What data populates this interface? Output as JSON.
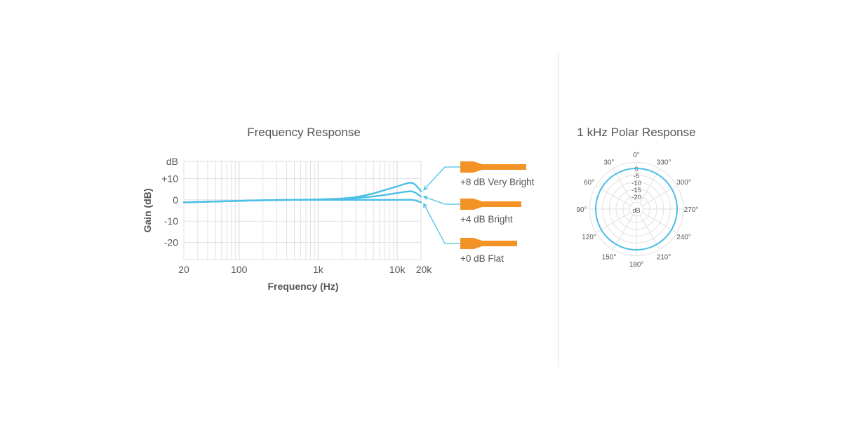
{
  "colors": {
    "curve": "#4bbfe6",
    "grid": "#e1e1e1",
    "plug": "#f39325",
    "divider": "#e3e3e3",
    "text": "#555555"
  },
  "chart_data": [
    {
      "type": "line",
      "title": "Frequency Response",
      "xlabel": "Frequency (Hz)",
      "ylabel": "Gain (dB)",
      "xscale": "log",
      "xlim": [
        20,
        20000
      ],
      "ylim": [
        -28,
        18
      ],
      "x_ticks": [
        {
          "value": 20,
          "label": "20"
        },
        {
          "value": 100,
          "label": "100"
        },
        {
          "value": 1000,
          "label": "1k"
        },
        {
          "value": 10000,
          "label": "10k"
        },
        {
          "value": 20000,
          "label": "20k"
        }
      ],
      "y_ticks": [
        {
          "value": 10,
          "label": "+10"
        },
        {
          "value": 0,
          "label": "0"
        },
        {
          "value": -10,
          "label": "-10"
        },
        {
          "value": -20,
          "label": "-20"
        }
      ],
      "y_unit_label": "dB",
      "grid": true,
      "legend_position": "right",
      "series": [
        {
          "name": "+8 dB Very Bright",
          "x": [
            20,
            50,
            100,
            200,
            500,
            1000,
            2000,
            3000,
            5000,
            7000,
            10000,
            13000,
            15000,
            17000,
            20000
          ],
          "y": [
            -1.2,
            -0.8,
            -0.5,
            -0.2,
            0,
            0.2,
            0.6,
            1.3,
            3.0,
            4.6,
            6.3,
            7.6,
            8.0,
            7.0,
            4.0
          ]
        },
        {
          "name": "+4 dB Bright",
          "x": [
            20,
            50,
            100,
            200,
            500,
            1000,
            2000,
            3000,
            5000,
            7000,
            10000,
            13000,
            15000,
            17000,
            20000
          ],
          "y": [
            -1.2,
            -0.8,
            -0.5,
            -0.2,
            0,
            0.1,
            0.3,
            0.8,
            1.6,
            2.3,
            3.2,
            3.8,
            4.0,
            3.3,
            1.5
          ]
        },
        {
          "name": "+0 dB Flat",
          "x": [
            20,
            50,
            100,
            200,
            500,
            1000,
            2000,
            5000,
            10000,
            15000,
            17000,
            20000
          ],
          "y": [
            -1.2,
            -0.8,
            -0.5,
            -0.2,
            0,
            0,
            0,
            0,
            0,
            0,
            -0.3,
            -1.2
          ]
        }
      ]
    },
    {
      "type": "polar",
      "title": "1 kHz Polar Response",
      "angle_labels": [
        {
          "angle": 0,
          "label": "0°"
        },
        {
          "angle": 30,
          "label": "330°"
        },
        {
          "angle": 60,
          "label": "300°"
        },
        {
          "angle": 90,
          "label": "270°"
        },
        {
          "angle": 120,
          "label": "240°"
        },
        {
          "angle": 150,
          "label": "210°"
        },
        {
          "angle": 180,
          "label": "180°"
        },
        {
          "angle": 210,
          "label": "150°"
        },
        {
          "angle": 240,
          "label": "120°"
        },
        {
          "angle": 270,
          "label": "90°"
        },
        {
          "angle": 300,
          "label": "60°"
        },
        {
          "angle": 330,
          "label": "30°"
        }
      ],
      "ring_labels": [
        "0",
        "-5",
        "-10",
        "-15",
        "-20"
      ],
      "rings_db": [
        0,
        -5,
        -10,
        -15,
        -20
      ],
      "rlim": [
        -30,
        0
      ],
      "unit_label": "dB",
      "pattern": "omnidirectional",
      "response_db": 0
    }
  ]
}
